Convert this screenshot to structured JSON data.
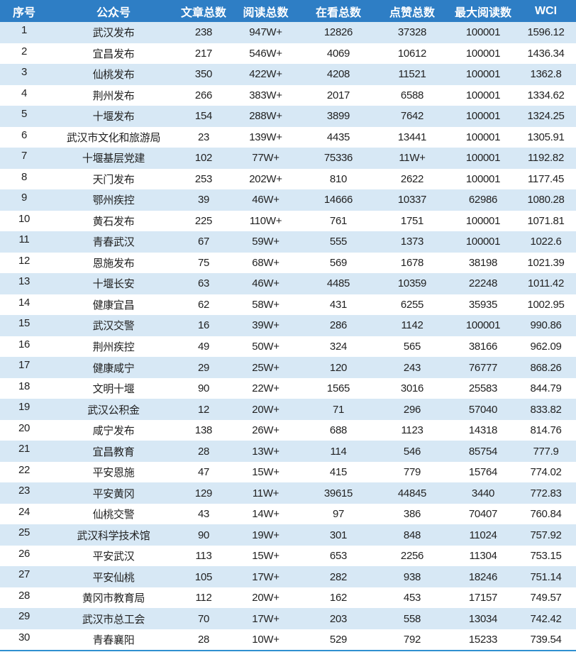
{
  "colors": {
    "header": "#2e7ec5",
    "stripe": "#d7e8f5"
  },
  "headers": [
    "序号",
    "公众号",
    "文章总数",
    "阅读总数",
    "在看总数",
    "点赞总数",
    "最大阅读数",
    "WCI"
  ],
  "rows": [
    [
      "1",
      "武汉发布",
      "238",
      "947W+",
      "12826",
      "37328",
      "100001",
      "1596.12"
    ],
    [
      "2",
      "宜昌发布",
      "217",
      "546W+",
      "4069",
      "10612",
      "100001",
      "1436.34"
    ],
    [
      "3",
      "仙桃发布",
      "350",
      "422W+",
      "4208",
      "11521",
      "100001",
      "1362.8"
    ],
    [
      "4",
      "荆州发布",
      "266",
      "383W+",
      "2017",
      "6588",
      "100001",
      "1334.62"
    ],
    [
      "5",
      "十堰发布",
      "154",
      "288W+",
      "3899",
      "7642",
      "100001",
      "1324.25"
    ],
    [
      "6",
      "武汉市文化和旅游局",
      "23",
      "139W+",
      "4435",
      "13441",
      "100001",
      "1305.91"
    ],
    [
      "7",
      "十堰基层党建",
      "102",
      "77W+",
      "75336",
      "11W+",
      "100001",
      "1192.82"
    ],
    [
      "8",
      "天门发布",
      "253",
      "202W+",
      "810",
      "2622",
      "100001",
      "1177.45"
    ],
    [
      "9",
      "鄂州疾控",
      "39",
      "46W+",
      "14666",
      "10337",
      "62986",
      "1080.28"
    ],
    [
      "10",
      "黄石发布",
      "225",
      "110W+",
      "761",
      "1751",
      "100001",
      "1071.81"
    ],
    [
      "11",
      "青春武汉",
      "67",
      "59W+",
      "555",
      "1373",
      "100001",
      "1022.6"
    ],
    [
      "12",
      "恩施发布",
      "75",
      "68W+",
      "569",
      "1678",
      "38198",
      "1021.39"
    ],
    [
      "13",
      "十堰长安",
      "63",
      "46W+",
      "4485",
      "10359",
      "22248",
      "1011.42"
    ],
    [
      "14",
      "健康宜昌",
      "62",
      "58W+",
      "431",
      "6255",
      "35935",
      "1002.95"
    ],
    [
      "15",
      "武汉交警",
      "16",
      "39W+",
      "286",
      "1142",
      "100001",
      "990.86"
    ],
    [
      "16",
      "荆州疾控",
      "49",
      "50W+",
      "324",
      "565",
      "38166",
      "962.09"
    ],
    [
      "17",
      "健康咸宁",
      "29",
      "25W+",
      "120",
      "243",
      "76777",
      "868.26"
    ],
    [
      "18",
      "文明十堰",
      "90",
      "22W+",
      "1565",
      "3016",
      "25583",
      "844.79"
    ],
    [
      "19",
      "武汉公积金",
      "12",
      "20W+",
      "71",
      "296",
      "57040",
      "833.82"
    ],
    [
      "20",
      "咸宁发布",
      "138",
      "26W+",
      "688",
      "1123",
      "14318",
      "814.76"
    ],
    [
      "21",
      "宜昌教育",
      "28",
      "13W+",
      "114",
      "546",
      "85754",
      "777.9"
    ],
    [
      "22",
      "平安恩施",
      "47",
      "15W+",
      "415",
      "779",
      "15764",
      "774.02"
    ],
    [
      "23",
      "平安黄冈",
      "129",
      "11W+",
      "39615",
      "44845",
      "3440",
      "772.83"
    ],
    [
      "24",
      "仙桃交警",
      "43",
      "14W+",
      "97",
      "386",
      "70407",
      "760.84"
    ],
    [
      "25",
      "武汉科学技术馆",
      "90",
      "19W+",
      "301",
      "848",
      "11024",
      "757.92"
    ],
    [
      "26",
      "平安武汉",
      "113",
      "15W+",
      "653",
      "2256",
      "11304",
      "753.15"
    ],
    [
      "27",
      "平安仙桃",
      "105",
      "17W+",
      "282",
      "938",
      "18246",
      "751.14"
    ],
    [
      "28",
      "黄冈市教育局",
      "112",
      "20W+",
      "162",
      "453",
      "17157",
      "749.57"
    ],
    [
      "29",
      "武汉市总工会",
      "70",
      "17W+",
      "203",
      "558",
      "13034",
      "742.42"
    ],
    [
      "30",
      "青春襄阳",
      "28",
      "10W+",
      "529",
      "792",
      "15233",
      "739.54"
    ]
  ]
}
